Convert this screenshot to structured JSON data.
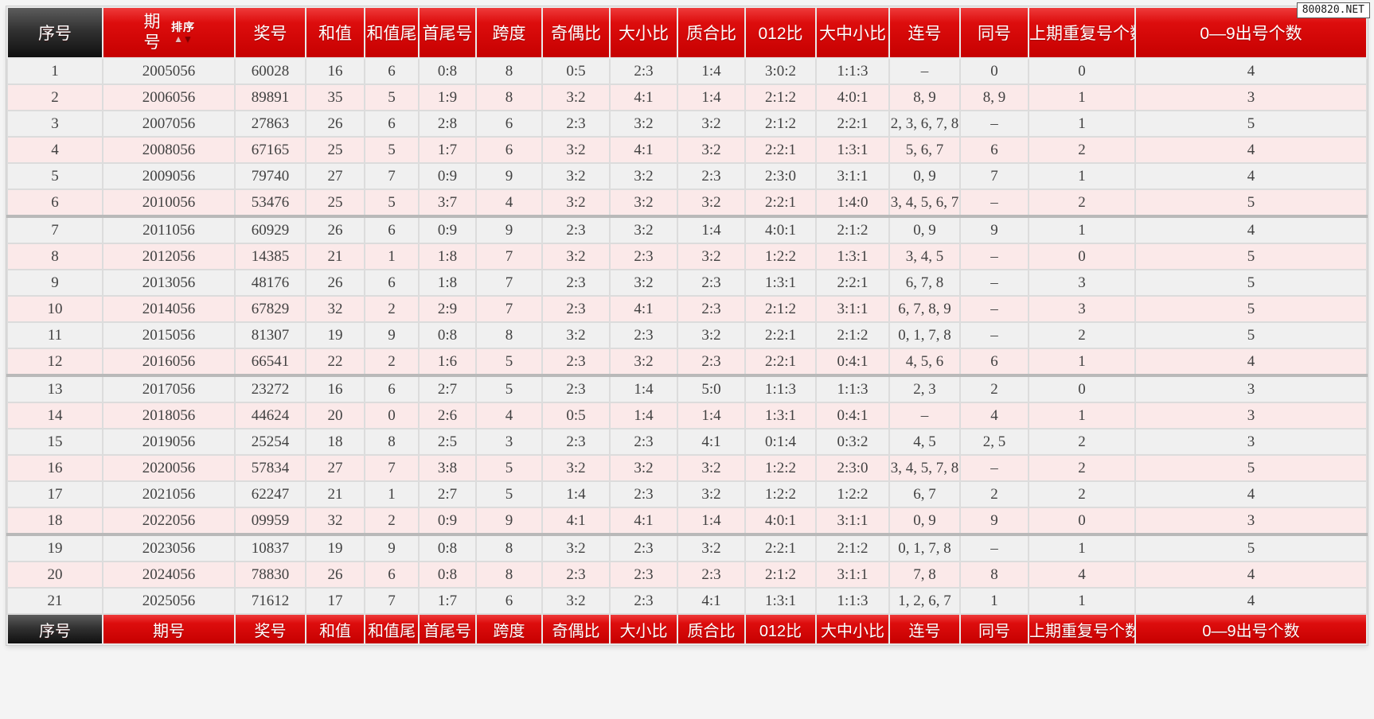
{
  "page": {
    "watermark": "800820.NET"
  },
  "colors": {
    "header_red": "#d40000",
    "header_dark": "#2b2b2b",
    "row_gray": "#f0f0f0",
    "row_pink": "#fbe9e9",
    "prize_col_bg": "#ffffff",
    "grid": "#dcdcdc",
    "group_separator": "#b9b9b9",
    "header_text": "#ffffff",
    "cell_text": "#414141"
  },
  "table": {
    "group_size": 6,
    "sort": {
      "label": "排序",
      "up_icon": "▲",
      "down_icon": "▼"
    },
    "columns": [
      {
        "key": "serial",
        "label": "序号"
      },
      {
        "key": "period",
        "label": "期号"
      },
      {
        "key": "prize-number",
        "label": "奖号"
      },
      {
        "key": "sum",
        "label": "和值"
      },
      {
        "key": "sum-tail",
        "label": "和值尾"
      },
      {
        "key": "first-last",
        "label": "首尾号"
      },
      {
        "key": "span",
        "label": "跨度"
      },
      {
        "key": "odd-even-ratio",
        "label": "奇偶比"
      },
      {
        "key": "big-small-ratio",
        "label": "大小比"
      },
      {
        "key": "prime-composite-ratio",
        "label": "质合比"
      },
      {
        "key": "012-ratio",
        "label": "012比"
      },
      {
        "key": "big-mid-small-ratio",
        "label": "大中小比"
      },
      {
        "key": "consecutive",
        "label": "连号"
      },
      {
        "key": "same-number",
        "label": "同号"
      },
      {
        "key": "prev-repeat-count",
        "label": "上期重复号个数"
      },
      {
        "key": "digit-count",
        "label": "0—9出号个数"
      }
    ],
    "rows": [
      [
        "1",
        "2005056",
        "60028",
        "16",
        "6",
        "0:8",
        "8",
        "0:5",
        "2:3",
        "1:4",
        "3:0:2",
        "1:1:3",
        "–",
        "0",
        "0",
        "4"
      ],
      [
        "2",
        "2006056",
        "89891",
        "35",
        "5",
        "1:9",
        "8",
        "3:2",
        "4:1",
        "1:4",
        "2:1:2",
        "4:0:1",
        "8, 9",
        "8, 9",
        "1",
        "3"
      ],
      [
        "3",
        "2007056",
        "27863",
        "26",
        "6",
        "2:8",
        "6",
        "2:3",
        "3:2",
        "3:2",
        "2:1:2",
        "2:2:1",
        "2, 3, 6, 7, 8",
        "–",
        "1",
        "5"
      ],
      [
        "4",
        "2008056",
        "67165",
        "25",
        "5",
        "1:7",
        "6",
        "3:2",
        "4:1",
        "3:2",
        "2:2:1",
        "1:3:1",
        "5, 6, 7",
        "6",
        "2",
        "4"
      ],
      [
        "5",
        "2009056",
        "79740",
        "27",
        "7",
        "0:9",
        "9",
        "3:2",
        "3:2",
        "2:3",
        "2:3:0",
        "3:1:1",
        "0, 9",
        "7",
        "1",
        "4"
      ],
      [
        "6",
        "2010056",
        "53476",
        "25",
        "5",
        "3:7",
        "4",
        "3:2",
        "3:2",
        "3:2",
        "2:2:1",
        "1:4:0",
        "3, 4, 5, 6, 7",
        "–",
        "2",
        "5"
      ],
      [
        "7",
        "2011056",
        "60929",
        "26",
        "6",
        "0:9",
        "9",
        "2:3",
        "3:2",
        "1:4",
        "4:0:1",
        "2:1:2",
        "0, 9",
        "9",
        "1",
        "4"
      ],
      [
        "8",
        "2012056",
        "14385",
        "21",
        "1",
        "1:8",
        "7",
        "3:2",
        "2:3",
        "3:2",
        "1:2:2",
        "1:3:1",
        "3, 4, 5",
        "–",
        "0",
        "5"
      ],
      [
        "9",
        "2013056",
        "48176",
        "26",
        "6",
        "1:8",
        "7",
        "2:3",
        "3:2",
        "2:3",
        "1:3:1",
        "2:2:1",
        "6, 7, 8",
        "–",
        "3",
        "5"
      ],
      [
        "10",
        "2014056",
        "67829",
        "32",
        "2",
        "2:9",
        "7",
        "2:3",
        "4:1",
        "2:3",
        "2:1:2",
        "3:1:1",
        "6, 7, 8, 9",
        "–",
        "3",
        "5"
      ],
      [
        "11",
        "2015056",
        "81307",
        "19",
        "9",
        "0:8",
        "8",
        "3:2",
        "2:3",
        "3:2",
        "2:2:1",
        "2:1:2",
        "0, 1, 7, 8",
        "–",
        "2",
        "5"
      ],
      [
        "12",
        "2016056",
        "66541",
        "22",
        "2",
        "1:6",
        "5",
        "2:3",
        "3:2",
        "2:3",
        "2:2:1",
        "0:4:1",
        "4, 5, 6",
        "6",
        "1",
        "4"
      ],
      [
        "13",
        "2017056",
        "23272",
        "16",
        "6",
        "2:7",
        "5",
        "2:3",
        "1:4",
        "5:0",
        "1:1:3",
        "1:1:3",
        "2, 3",
        "2",
        "0",
        "3"
      ],
      [
        "14",
        "2018056",
        "44624",
        "20",
        "0",
        "2:6",
        "4",
        "0:5",
        "1:4",
        "1:4",
        "1:3:1",
        "0:4:1",
        "–",
        "4",
        "1",
        "3"
      ],
      [
        "15",
        "2019056",
        "25254",
        "18",
        "8",
        "2:5",
        "3",
        "2:3",
        "2:3",
        "4:1",
        "0:1:4",
        "0:3:2",
        "4, 5",
        "2, 5",
        "2",
        "3"
      ],
      [
        "16",
        "2020056",
        "57834",
        "27",
        "7",
        "3:8",
        "5",
        "3:2",
        "3:2",
        "3:2",
        "1:2:2",
        "2:3:0",
        "3, 4, 5, 7, 8",
        "–",
        "2",
        "5"
      ],
      [
        "17",
        "2021056",
        "62247",
        "21",
        "1",
        "2:7",
        "5",
        "1:4",
        "2:3",
        "3:2",
        "1:2:2",
        "1:2:2",
        "6, 7",
        "2",
        "2",
        "4"
      ],
      [
        "18",
        "2022056",
        "09959",
        "32",
        "2",
        "0:9",
        "9",
        "4:1",
        "4:1",
        "1:4",
        "4:0:1",
        "3:1:1",
        "0, 9",
        "9",
        "0",
        "3"
      ],
      [
        "19",
        "2023056",
        "10837",
        "19",
        "9",
        "0:8",
        "8",
        "3:2",
        "2:3",
        "3:2",
        "2:2:1",
        "2:1:2",
        "0, 1, 7, 8",
        "–",
        "1",
        "5"
      ],
      [
        "20",
        "2024056",
        "78830",
        "26",
        "6",
        "0:8",
        "8",
        "2:3",
        "2:3",
        "2:3",
        "2:1:2",
        "3:1:1",
        "7, 8",
        "8",
        "4",
        "4"
      ],
      [
        "21",
        "2025056",
        "71612",
        "17",
        "7",
        "1:7",
        "6",
        "3:2",
        "2:3",
        "4:1",
        "1:3:1",
        "1:1:3",
        "1, 2, 6, 7",
        "1",
        "1",
        "4"
      ]
    ]
  }
}
